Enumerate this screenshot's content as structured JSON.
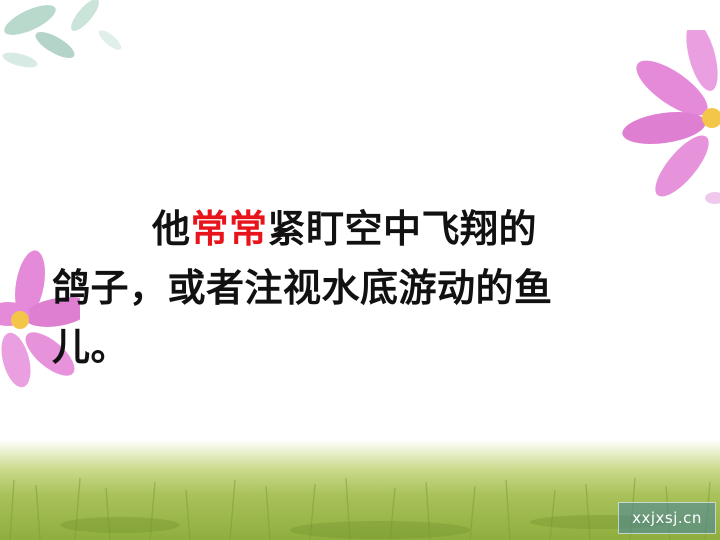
{
  "paragraph": {
    "line1_a": "他",
    "line1_highlight": "常常",
    "line1_b": "紧盯空中飞翔的",
    "line2": "鸽子，或者注视水底游动的鱼",
    "line3": "儿。"
  },
  "colors": {
    "highlight": "#e8141b",
    "text": "#111111",
    "flower_pink": "#e07fd6",
    "grass": "#9ab84a"
  },
  "watermark": {
    "text": "xxjxsj.cn"
  },
  "icons": [
    "leaves-decoration",
    "pink-flower-decoration",
    "grass-decoration"
  ]
}
